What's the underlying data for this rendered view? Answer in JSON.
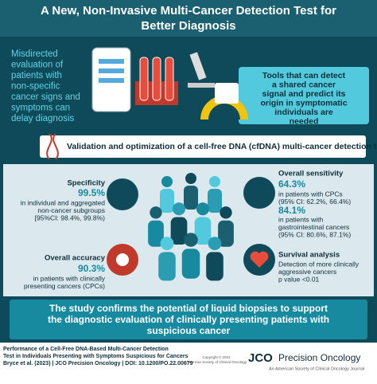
{
  "header": {
    "title": [
      "A New, Non-Invasive Multi-Cancer Detection Test for",
      "Better Diagnosis"
    ]
  },
  "problem": {
    "left": [
      "Misdirected",
      "evaluation of",
      "patients with",
      "non-specific",
      "cancer signs and",
      "symptoms can",
      "delay diagnosis"
    ],
    "right": [
      "Tools that can detect",
      "a shared cancer",
      "signal and predict its",
      "origin in symptomatic",
      "individuals are",
      "needed"
    ]
  },
  "banner": "Validation and optimization of a cell-free DNA (cfDNA) multi-cancer detection test",
  "results": {
    "specificity": {
      "title": "Specificity",
      "value": "99.5%",
      "lines": [
        "in individual and aggregated",
        "non-cancer subgroups",
        "[95%CI: 98.4%, 99.8%)"
      ]
    },
    "accuracy": {
      "title": "Overall accuracy",
      "value": "90.3%",
      "lines": [
        "in patients with clinically",
        "presenting cancers (CPCs)"
      ]
    },
    "sensitivity": {
      "title": "Overall sensitivity",
      "value": "64.3%",
      "lines": [
        "in patients with CPCs",
        "(95% CI: 62.2%, 66.4%)"
      ],
      "value2": "84.1%",
      "lines2": [
        "in patients with",
        "gastrointestinal cancers",
        "(95% CI: 80.6%, 87.1%)"
      ]
    },
    "survival": {
      "title": "Survival analysis",
      "lines": [
        "Detection of more clinically",
        "aggressive cancers",
        "p value <0.01"
      ]
    }
  },
  "conclusion": [
    "The study confirms the potential of liquid biopsies to support",
    "the diagnostic evaluation of clinically presenting patients with",
    "suspicious cancer"
  ],
  "footer": {
    "citation": [
      "Performance of a Cell-Free DNA-Based Multi-Cancer Detection",
      "Test in Individuals Presenting with Symptoms Suspicious for Cancers",
      "Bryce et al. (2023) | JCO Precision Oncology | DOI: 10.1200/PO.22.00679"
    ],
    "copyright": [
      "Copyright © 2023",
      "American Society of Clinical Oncology"
    ],
    "journal": "JCO",
    "journal_name": "Precision Oncology",
    "journal_sub": "An American Society of Clinical Oncology Journal"
  }
}
